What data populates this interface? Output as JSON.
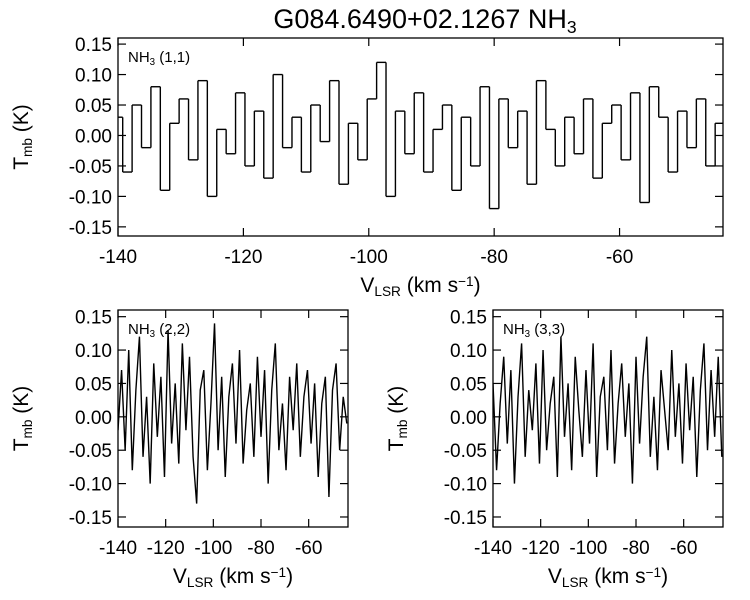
{
  "title": [
    "G084.6490+02.1267 NH",
    "3"
  ],
  "chart_data": [
    {
      "type": "line",
      "step": true,
      "label": [
        "NH",
        "3",
        " (1,1)"
      ],
      "xlabel": [
        "V",
        "LSR",
        " (km s",
        "−1",
        ")"
      ],
      "ylabel": [
        "T",
        "mb",
        " (K)"
      ],
      "xlim": [
        -140,
        -43.5
      ],
      "xticks": [
        -140,
        -120,
        -100,
        -80,
        -60
      ],
      "ylim": [
        -0.165,
        0.16
      ],
      "yticks": [
        -0.15,
        {
          "value": -0.1,
          "label": "-0.10"
        },
        -0.05,
        {
          "value": 0,
          "label": "0.00"
        },
        0.05,
        {
          "value": 0.1,
          "label": "0.10"
        },
        0.15
      ],
      "color": "#000000",
      "x": [
        -140,
        -138.5,
        -137,
        -135.5,
        -134,
        -132.5,
        -131,
        -129.5,
        -128,
        -126.5,
        -125,
        -123.5,
        -122,
        -120.5,
        -119,
        -117.5,
        -116,
        -114.5,
        -113,
        -111.5,
        -110,
        -108.5,
        -107,
        -105.5,
        -104,
        -102.5,
        -101,
        -99.5,
        -98,
        -96.5,
        -95,
        -93.5,
        -92,
        -90.5,
        -89,
        -87.5,
        -86,
        -84.5,
        -83,
        -81.5,
        -80,
        -78.5,
        -77,
        -75.5,
        -74,
        -72.5,
        -71,
        -69.5,
        -68,
        -66.5,
        -65,
        -63.5,
        -62,
        -60.5,
        -59,
        -57.5,
        -56,
        -54.5,
        -53,
        -51.5,
        -50,
        -48.5,
        -47,
        -45.5,
        -44
      ],
      "values": [
        0.03,
        -0.06,
        0.05,
        -0.02,
        0.08,
        -0.09,
        0.02,
        0.06,
        -0.04,
        0.09,
        -0.1,
        0.01,
        -0.03,
        0.07,
        -0.05,
        0.04,
        -0.07,
        0.1,
        -0.02,
        0.03,
        -0.06,
        0.05,
        -0.01,
        0.09,
        -0.08,
        0.02,
        -0.04,
        0.06,
        0.12,
        -0.1,
        0.04,
        -0.03,
        0.07,
        -0.06,
        0.01,
        0.05,
        -0.09,
        0.03,
        -0.05,
        0.08,
        -0.12,
        0.06,
        -0.02,
        0.04,
        -0.08,
        0.09,
        0.01,
        -0.05,
        0.03,
        -0.03,
        0.06,
        -0.07,
        0.02,
        0.05,
        -0.04,
        0.07,
        -0.11,
        0.08,
        0.03,
        -0.06,
        0.04,
        -0.02,
        0.06,
        -0.05,
        0.02
      ]
    },
    {
      "type": "line",
      "step": false,
      "label": [
        "NH",
        "3",
        " (2,2)"
      ],
      "xlabel": [
        "V",
        "LSR",
        " (km s",
        "−1",
        ")"
      ],
      "ylabel": [
        "T",
        "mb",
        " (K)"
      ],
      "xlim": [
        -140,
        -43.5
      ],
      "xticks": [
        -140,
        -120,
        -100,
        -80,
        -60
      ],
      "ylim": [
        -0.165,
        0.16
      ],
      "yticks": [
        -0.15,
        {
          "value": -0.1,
          "label": "-0.10"
        },
        -0.05,
        {
          "value": 0,
          "label": "0.00"
        },
        0.05,
        {
          "value": 0.1,
          "label": "0.10"
        },
        0.15
      ],
      "color": "#000000",
      "x": [
        -140,
        -138.5,
        -137,
        -135.5,
        -134,
        -132.5,
        -131,
        -129.5,
        -128,
        -126.5,
        -125,
        -123.5,
        -122,
        -120.5,
        -119,
        -117.5,
        -116,
        -114.5,
        -113,
        -111.5,
        -110,
        -108.5,
        -107,
        -105.5,
        -104,
        -102.5,
        -101,
        -99.5,
        -98,
        -96.5,
        -95,
        -93.5,
        -92,
        -90.5,
        -89,
        -87.5,
        -86,
        -84.5,
        -83,
        -81.5,
        -80,
        -78.5,
        -77,
        -75.5,
        -74,
        -72.5,
        -71,
        -69.5,
        -68,
        -66.5,
        -65,
        -63.5,
        -62,
        -60.5,
        -59,
        -57.5,
        -56,
        -54.5,
        -53,
        -51.5,
        -50,
        -48.5,
        -47,
        -45.5,
        -44
      ],
      "values": [
        -0.02,
        0.07,
        -0.05,
        0.1,
        -0.08,
        0.04,
        0.12,
        -0.06,
        0.03,
        -0.1,
        0.08,
        -0.03,
        0.06,
        -0.09,
        0.13,
        -0.04,
        0.05,
        -0.07,
        0.11,
        -0.02,
        0.09,
        -0.06,
        -0.13,
        0.04,
        0.07,
        -0.08,
        0.02,
        0.14,
        -0.05,
        0.06,
        -0.09,
        0.03,
        0.08,
        -0.04,
        0.1,
        -0.07,
        0.01,
        0.05,
        -0.06,
        0.09,
        -0.03,
        0.07,
        -0.1,
        0.04,
        0.11,
        -0.05,
        0.02,
        -0.08,
        0.06,
        -0.02,
        0.08,
        -0.06,
        0.03,
        0.07,
        -0.04,
        0.05,
        -0.09,
        0.02,
        0.06,
        -0.12,
        0.04,
        0.08,
        -0.05,
        0.03,
        -0.01
      ]
    },
    {
      "type": "line",
      "step": false,
      "label": [
        "NH",
        "3",
        " (3,3)"
      ],
      "xlabel": [
        "V",
        "LSR",
        " (km s",
        "−1",
        ")"
      ],
      "ylabel": [
        "T",
        "mb",
        " (K)"
      ],
      "xlim": [
        -140,
        -43.5
      ],
      "xticks": [
        -140,
        -120,
        -100,
        -80,
        -60
      ],
      "ylim": [
        -0.165,
        0.16
      ],
      "yticks": [
        -0.15,
        {
          "value": -0.1,
          "label": "-0.10"
        },
        -0.05,
        {
          "value": 0,
          "label": "0.00"
        },
        0.05,
        {
          "value": 0.1,
          "label": "0.10"
        },
        0.15
      ],
      "color": "#000000",
      "x": [
        -140,
        -138.5,
        -137,
        -135.5,
        -134,
        -132.5,
        -131,
        -129.5,
        -128,
        -126.5,
        -125,
        -123.5,
        -122,
        -120.5,
        -119,
        -117.5,
        -116,
        -114.5,
        -113,
        -111.5,
        -110,
        -108.5,
        -107,
        -105.5,
        -104,
        -102.5,
        -101,
        -99.5,
        -98,
        -96.5,
        -95,
        -93.5,
        -92,
        -90.5,
        -89,
        -87.5,
        -86,
        -84.5,
        -83,
        -81.5,
        -80,
        -78.5,
        -77,
        -75.5,
        -74,
        -72.5,
        -71,
        -69.5,
        -68,
        -66.5,
        -65,
        -63.5,
        -62,
        -60.5,
        -59,
        -57.5,
        -56,
        -54.5,
        -53,
        -51.5,
        -50,
        -48.5,
        -47,
        -45.5,
        -44
      ],
      "values": [
        0.05,
        -0.08,
        0.02,
        0.09,
        -0.04,
        0.07,
        -0.1,
        0.03,
        0.11,
        -0.06,
        0.04,
        -0.02,
        0.08,
        -0.07,
        0.1,
        -0.05,
        0.02,
        0.06,
        -0.09,
        0.12,
        -0.03,
        0.05,
        -0.08,
        0.09,
        0.01,
        -0.06,
        0.07,
        -0.04,
        0.11,
        -0.09,
        0.03,
        0.06,
        -0.05,
        0.1,
        -0.07,
        0.02,
        0.08,
        -0.03,
        0.05,
        -0.1,
        0.09,
        -0.04,
        0.06,
        0.12,
        -0.06,
        0.03,
        -0.08,
        0.07,
        0.01,
        -0.05,
        0.1,
        -0.03,
        0.05,
        -0.07,
        0.08,
        -0.02,
        0.06,
        -0.09,
        0.04,
        0.11,
        -0.05,
        0.07,
        -0.03,
        0.09,
        -0.06
      ]
    }
  ]
}
